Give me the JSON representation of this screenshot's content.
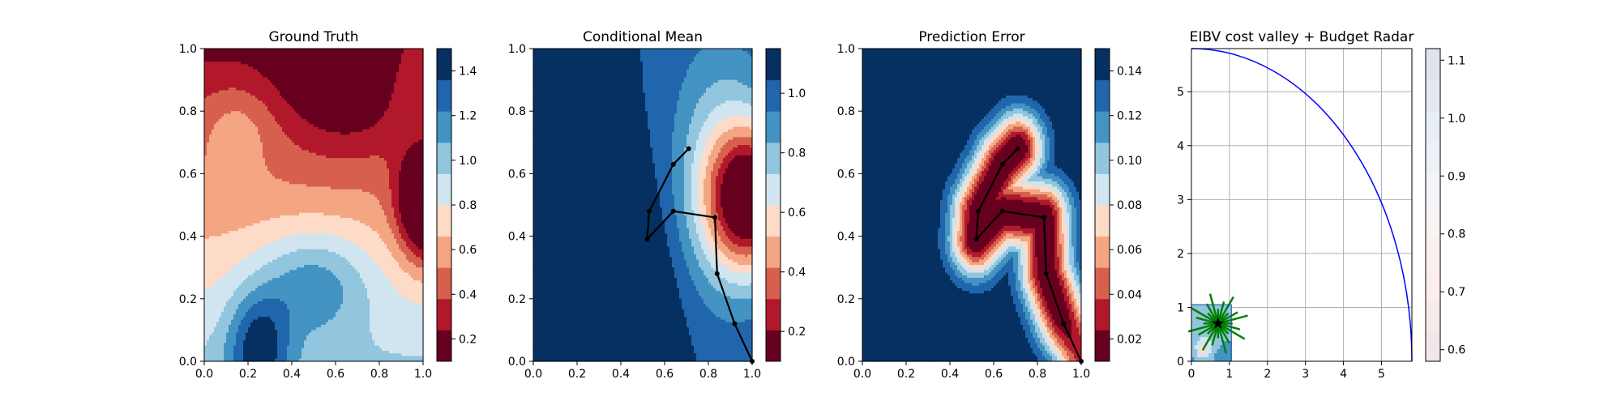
{
  "figure": {
    "panels": [
      {
        "id": "gt",
        "title": "Ground Truth"
      },
      {
        "id": "cm",
        "title": "Conditional Mean"
      },
      {
        "id": "pe",
        "title": "Prediction Error"
      },
      {
        "id": "eibv",
        "title": "EIBV cost valley + Budget Radar"
      }
    ]
  },
  "colormap": {
    "name": "RdBu",
    "levels_high_to_low": [
      "#053061",
      "#2166ac",
      "#4393c3",
      "#92c5de",
      "#d1e5f0",
      "#fddbc7",
      "#f4a582",
      "#d6604d",
      "#b2182b",
      "#67001f"
    ]
  },
  "chart_data": [
    {
      "type": "heatmap",
      "title": "Ground Truth",
      "xlim": [
        0,
        1
      ],
      "ylim": [
        0,
        1
      ],
      "xticks": [
        "0.0",
        "0.2",
        "0.4",
        "0.6",
        "0.8",
        "1.0"
      ],
      "yticks": [
        "0.0",
        "0.2",
        "0.4",
        "0.6",
        "0.8",
        "1.0"
      ],
      "colorbar": {
        "min": 0.1,
        "max": 1.5,
        "ticks": [
          "0.2",
          "0.4",
          "0.6",
          "0.8",
          "1.0",
          "1.2",
          "1.4"
        ]
      },
      "field": {
        "base": 0.95,
        "gradient": [
          {
            "coef": -0.75,
            "axis": "y"
          }
        ],
        "blobs": [
          {
            "cx": 1.02,
            "cy": 0.5,
            "sx": 0.09,
            "sy": 0.12,
            "amp": -0.95
          },
          {
            "cx": 0.65,
            "cy": 0.95,
            "sx": 0.2,
            "sy": 0.18,
            "amp": -0.35
          },
          {
            "cx": 0.15,
            "cy": 0.75,
            "sx": 0.12,
            "sy": 0.1,
            "amp": 0.2
          },
          {
            "cx": 0.25,
            "cy": 0.05,
            "sx": 0.1,
            "sy": 0.12,
            "amp": 0.55
          },
          {
            "cx": 0.5,
            "cy": 0.25,
            "sx": 0.18,
            "sy": 0.12,
            "amp": 0.4
          },
          {
            "cx": 0.95,
            "cy": 0.95,
            "sx": 0.1,
            "sy": 0.15,
            "amp": 0.2
          }
        ]
      }
    },
    {
      "type": "heatmap",
      "title": "Conditional Mean",
      "xlim": [
        0,
        1
      ],
      "ylim": [
        0,
        1
      ],
      "xticks": [
        "0.0",
        "0.2",
        "0.4",
        "0.6",
        "0.8",
        "1.0"
      ],
      "yticks": [
        "0.0",
        "0.2",
        "0.4",
        "0.6",
        "0.8",
        "1.0"
      ],
      "colorbar": {
        "min": 0.1,
        "max": 1.15,
        "ticks": [
          "0.2",
          "0.4",
          "0.6",
          "0.8",
          "1.0"
        ]
      },
      "field": {
        "base": 1.05,
        "gradient": [],
        "blobs": [
          {
            "cx": 1.0,
            "cy": 0.52,
            "sx": 0.14,
            "sy": 0.16,
            "amp": -0.95
          },
          {
            "cx": 0.85,
            "cy": 0.6,
            "sx": 0.16,
            "sy": 0.3,
            "amp": -0.3
          },
          {
            "cx": 0.32,
            "cy": 0.2,
            "sx": 0.22,
            "sy": 0.3,
            "amp": 0.25
          }
        ]
      },
      "path": {
        "x": [
          0.71,
          0.64,
          0.53,
          0.52,
          0.64,
          0.83,
          0.84,
          0.92,
          1.0
        ],
        "y": [
          0.68,
          0.63,
          0.48,
          0.39,
          0.48,
          0.46,
          0.28,
          0.12,
          0.0
        ]
      }
    },
    {
      "type": "heatmap",
      "title": "Prediction Error",
      "xlim": [
        0,
        1
      ],
      "ylim": [
        0,
        1
      ],
      "xticks": [
        "0.0",
        "0.2",
        "0.4",
        "0.6",
        "0.8",
        "1.0"
      ],
      "yticks": [
        "0.0",
        "0.2",
        "0.4",
        "0.6",
        "0.8",
        "1.0"
      ],
      "colorbar": {
        "min": 0.01,
        "max": 0.15,
        "ticks": [
          "0.02",
          "0.04",
          "0.06",
          "0.08",
          "0.10",
          "0.12",
          "0.14"
        ]
      },
      "field": {
        "base": 0.15,
        "gradient": [],
        "segments_from_path": true,
        "tube_sigma": 0.08,
        "tube_amp": -0.145,
        "extra_blobs": [
          {
            "cx": 0.95,
            "cy": 0.0,
            "sx": 0.08,
            "sy": 0.08,
            "amp": 0.03
          }
        ]
      },
      "path": {
        "x": [
          0.71,
          0.64,
          0.53,
          0.52,
          0.64,
          0.83,
          0.84,
          0.92,
          1.0
        ],
        "y": [
          0.68,
          0.63,
          0.48,
          0.39,
          0.48,
          0.46,
          0.28,
          0.12,
          0.0
        ]
      }
    },
    {
      "type": "line",
      "title": "EIBV cost valley + Budget Radar",
      "xlim": [
        0,
        5.8
      ],
      "ylim": [
        0,
        5.8
      ],
      "xticks": [
        "0",
        "1",
        "2",
        "3",
        "4",
        "5"
      ],
      "yticks": [
        "0",
        "1",
        "2",
        "3",
        "4",
        "5"
      ],
      "grid": true,
      "radar_radius": 5.8,
      "radar_color": "#0000ff",
      "inset": {
        "x0": 0,
        "x1": 1.05,
        "y0": 0,
        "y1": 1.05
      },
      "start_marker": {
        "x": 0.7,
        "y": 0.7,
        "shape": "star"
      },
      "colorbar": {
        "min": 0.58,
        "max": 1.12,
        "ticks": [
          "0.6",
          "0.7",
          "0.8",
          "0.9",
          "1.0",
          "1.1"
        ]
      }
    }
  ]
}
